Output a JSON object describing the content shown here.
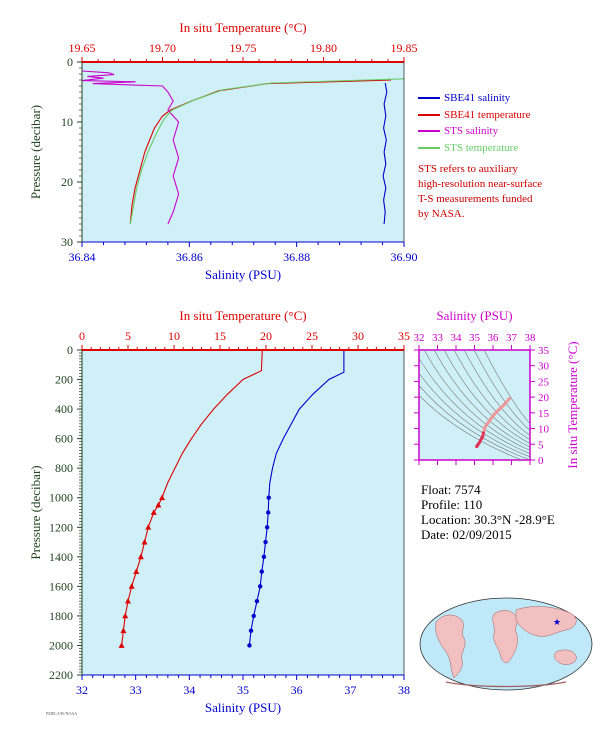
{
  "colors": {
    "background": "#d0f0f8",
    "salinity": "#0000cc",
    "temperature": "#dd0000",
    "sts_salinity": "#cc00cc",
    "sts_temperature": "#66cc66",
    "pressure_axis": "#224422",
    "ts_axis": "#cc00cc"
  },
  "legend": [
    {
      "label": "SBE41 salinity",
      "color": "#0000cc"
    },
    {
      "label": "SBE41 temperature",
      "color": "#dd0000"
    },
    {
      "label": "STS salinity",
      "color": "#cc00cc"
    },
    {
      "label": "STS temperature",
      "color": "#66cc66"
    }
  ],
  "note": {
    "line1": "STS refers to auxiliary",
    "line2": "high-resolution near-surface",
    "line3": "T-S measurements funded",
    "line4": "by NASA."
  },
  "float_info": {
    "float": "Float:  7574",
    "profile": "Profile:  110",
    "location": "Location:  30.3°N  -28.9°E",
    "date": "Date:  02/09/2015"
  },
  "footer_text": "PMEL/UW/NOAA",
  "chart_data": [
    {
      "id": "top",
      "type": "line",
      "title": "",
      "xlabel_top": "In situ Temperature (°C)",
      "xlabel_bottom": "Salinity (PSU)",
      "ylabel": "Pressure (decibar)",
      "temp_ticks": [
        "19.65",
        "19.70",
        "19.75",
        "19.80",
        "19.85"
      ],
      "temp_lim": [
        19.65,
        19.85
      ],
      "sal_ticks": [
        "36.84",
        "36.86",
        "36.88",
        "36.90"
      ],
      "sal_lim": [
        36.84,
        36.9
      ],
      "p_ticks": [
        "0",
        "10",
        "20",
        "30"
      ],
      "p_lim": [
        0,
        30
      ],
      "series": [
        {
          "name": "SBE41 salinity",
          "axis": "sal",
          "color": "#0000cc",
          "points": [
            [
              36.8965,
              3.5
            ],
            [
              36.8968,
              5
            ],
            [
              36.8963,
              7
            ],
            [
              36.8966,
              9
            ],
            [
              36.8962,
              11
            ],
            [
              36.8967,
              13
            ],
            [
              36.8963,
              15
            ],
            [
              36.8966,
              17
            ],
            [
              36.8961,
              19
            ],
            [
              36.8966,
              21
            ],
            [
              36.8962,
              23
            ],
            [
              36.8965,
              25
            ],
            [
              36.8963,
              27
            ]
          ]
        },
        {
          "name": "SBE41 temperature",
          "axis": "temp",
          "color": "#dd0000",
          "points": [
            [
              19.842,
              3.0
            ],
            [
              19.765,
              3.6
            ],
            [
              19.735,
              4.8
            ],
            [
              19.718,
              6.5
            ],
            [
              19.705,
              8.0
            ],
            [
              19.7,
              9.0
            ],
            [
              19.695,
              11
            ],
            [
              19.692,
              13
            ],
            [
              19.689,
              15
            ],
            [
              19.686,
              18
            ],
            [
              19.683,
              21
            ],
            [
              19.681,
              24
            ],
            [
              19.68,
              27
            ]
          ]
        },
        {
          "name": "STS salinity",
          "axis": "sal",
          "color": "#cc00cc",
          "points": [
            [
              36.84,
              1.5
            ],
            [
              36.845,
              1.8
            ],
            [
              36.846,
              2.1
            ],
            [
              36.841,
              2.4
            ],
            [
              36.844,
              2.7
            ],
            [
              36.84,
              3.1
            ],
            [
              36.85,
              3.3
            ],
            [
              36.842,
              3.6
            ],
            [
              36.855,
              4.0
            ],
            [
              36.856,
              5.0
            ],
            [
              36.857,
              6.5
            ],
            [
              36.856,
              8.0
            ],
            [
              36.858,
              10
            ],
            [
              36.857,
              13
            ],
            [
              36.858,
              16
            ],
            [
              36.857,
              19
            ],
            [
              36.858,
              22
            ],
            [
              36.857,
              25
            ],
            [
              36.856,
              27
            ]
          ]
        },
        {
          "name": "STS temperature",
          "axis": "temp",
          "color": "#66cc66",
          "points": [
            [
              19.85,
              2.8
            ],
            [
              19.768,
              3.5
            ],
            [
              19.738,
              4.6
            ],
            [
              19.72,
              6.3
            ],
            [
              19.706,
              8.0
            ],
            [
              19.701,
              9.5
            ],
            [
              19.696,
              12
            ],
            [
              19.691,
              15
            ],
            [
              19.687,
              18
            ],
            [
              19.684,
              21
            ],
            [
              19.682,
              24
            ],
            [
              19.68,
              27
            ]
          ]
        }
      ]
    },
    {
      "id": "bottom",
      "type": "line",
      "title": "",
      "xlabel_top": "In situ Temperature (°C)",
      "xlabel_bottom": "Salinity (PSU)",
      "ylabel": "Pressure (decibar)",
      "temp_ticks": [
        "0",
        "5",
        "10",
        "15",
        "20",
        "25",
        "30",
        "35"
      ],
      "temp_lim": [
        0,
        35
      ],
      "sal_ticks": [
        "32",
        "33",
        "34",
        "35",
        "36",
        "37",
        "38"
      ],
      "sal_lim": [
        32,
        38
      ],
      "p_ticks": [
        "0",
        "200",
        "400",
        "600",
        "800",
        "1000",
        "1200",
        "1400",
        "1600",
        "1800",
        "2000",
        "2200"
      ],
      "p_lim": [
        0,
        2200
      ],
      "series": [
        {
          "name": "temperature",
          "axis": "temp",
          "color": "#dd0000",
          "marker": "triangle",
          "points": [
            [
              19.6,
              0
            ],
            [
              19.5,
              140
            ],
            [
              17.5,
              200
            ],
            [
              15.8,
              300
            ],
            [
              14.3,
              400
            ],
            [
              13.0,
              500
            ],
            [
              11.9,
              600
            ],
            [
              10.9,
              700
            ],
            [
              10.1,
              800
            ],
            [
              9.3,
              900
            ],
            [
              8.7,
              1000
            ],
            [
              8.3,
              1050
            ],
            [
              7.8,
              1100
            ],
            [
              7.2,
              1200
            ],
            [
              6.8,
              1300
            ],
            [
              6.4,
              1400
            ],
            [
              5.9,
              1500
            ],
            [
              5.4,
              1600
            ],
            [
              5.0,
              1700
            ],
            [
              4.7,
              1800
            ],
            [
              4.5,
              1900
            ],
            [
              4.3,
              2000
            ]
          ]
        },
        {
          "name": "salinity",
          "axis": "sal",
          "color": "#0000cc",
          "marker": "dot",
          "points": [
            [
              36.88,
              0
            ],
            [
              36.88,
              150
            ],
            [
              36.6,
              200
            ],
            [
              36.3,
              300
            ],
            [
              36.05,
              400
            ],
            [
              35.9,
              500
            ],
            [
              35.75,
              600
            ],
            [
              35.62,
              700
            ],
            [
              35.55,
              800
            ],
            [
              35.5,
              900
            ],
            [
              35.48,
              1000
            ],
            [
              35.47,
              1100
            ],
            [
              35.45,
              1200
            ],
            [
              35.42,
              1300
            ],
            [
              35.39,
              1400
            ],
            [
              35.35,
              1500
            ],
            [
              35.32,
              1600
            ],
            [
              35.26,
              1700
            ],
            [
              35.2,
              1800
            ],
            [
              35.15,
              1900
            ],
            [
              35.12,
              2000
            ]
          ]
        }
      ]
    },
    {
      "id": "ts",
      "type": "scatter",
      "title": "",
      "xlabel": "Salinity (PSU)",
      "ylabel": "In situ Temperature (°C)",
      "x_ticks": [
        "32",
        "33",
        "34",
        "35",
        "36",
        "37",
        "38"
      ],
      "x_lim": [
        32,
        38
      ],
      "y_ticks": [
        "0",
        "5",
        "10",
        "15",
        "20",
        "25",
        "30",
        "35"
      ],
      "y_lim": [
        0,
        35
      ],
      "color_light": "#ee9999",
      "color_dark": "#dd3355",
      "points": [
        [
          35.12,
          4.3
        ],
        [
          35.15,
          4.6
        ],
        [
          35.2,
          5.0
        ],
        [
          35.26,
          5.5
        ],
        [
          35.32,
          6.2
        ],
        [
          35.39,
          6.9
        ],
        [
          35.45,
          7.6
        ],
        [
          35.48,
          8.6
        ],
        [
          35.55,
          10.1
        ],
        [
          35.62,
          11.0
        ],
        [
          35.75,
          12.0
        ],
        [
          35.9,
          13.2
        ],
        [
          36.05,
          14.4
        ],
        [
          36.3,
          15.9
        ],
        [
          36.6,
          17.6
        ],
        [
          36.88,
          19.5
        ]
      ]
    }
  ]
}
